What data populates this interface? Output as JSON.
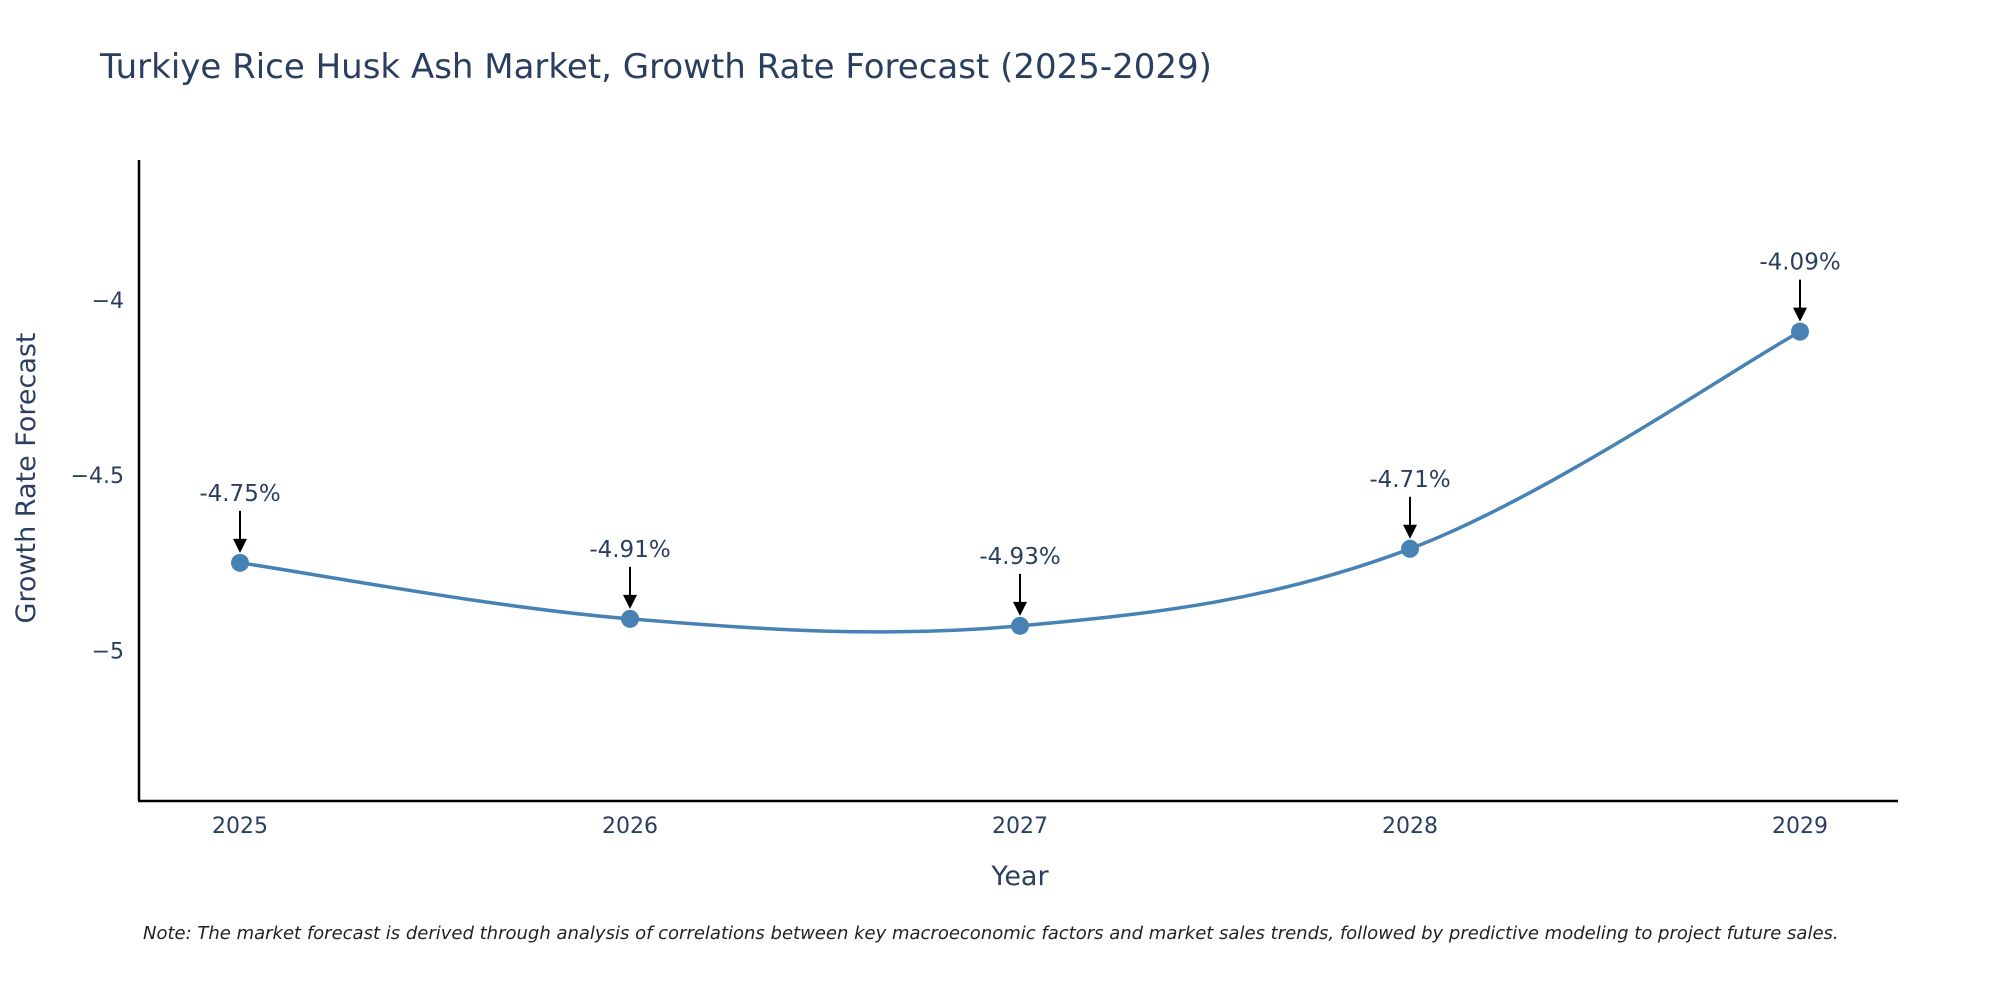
{
  "chart_data": {
    "type": "line",
    "title": "Turkiye Rice Husk Ash Market, Growth Rate Forecast (2025-2029)",
    "xlabel": "Year",
    "ylabel": "Growth Rate Forecast",
    "x": [
      "2025",
      "2026",
      "2027",
      "2028",
      "2029"
    ],
    "series": [
      {
        "name": "Growth Rate Forecast",
        "values": [
          -4.75,
          -4.91,
          -4.93,
          -4.71,
          -4.09
        ],
        "color": "#4682b4"
      }
    ],
    "data_labels": [
      "-4.75%",
      "-4.91%",
      "-4.93%",
      "-4.71%",
      "-4.09%"
    ],
    "ylim": [
      -5.43,
      -3.6
    ],
    "y_ticks": [
      -4,
      -4.5,
      -5
    ],
    "y_tick_labels": [
      "−4",
      "−4.5",
      "−5"
    ],
    "grid": false,
    "legend": "none",
    "note": "Note: The market forecast is derived through analysis of correlations between key macroeconomic factors and market sales trends, followed by predictive modeling to project future sales."
  }
}
